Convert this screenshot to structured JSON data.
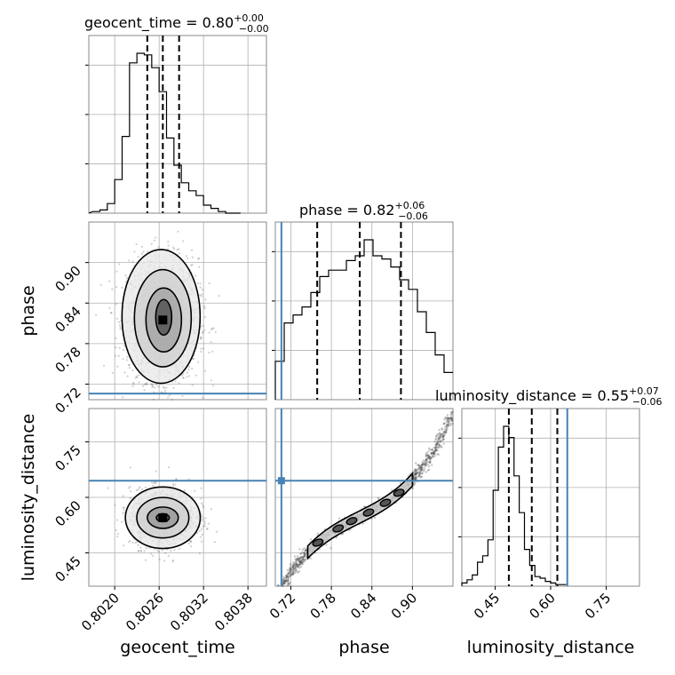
{
  "chart_data": {
    "type": "corner",
    "parameters": [
      {
        "name": "geocent_time",
        "xlabel": "geocent_time",
        "ylabel": "",
        "title_prefix": "geocent_time = ",
        "median": "0.80",
        "plus": "+0.00",
        "minus": "−0.00",
        "quantiles": [
          0.80244,
          0.80265,
          0.80287
        ],
        "range": [
          0.80165,
          0.80405
        ],
        "ticks": [
          0.802,
          0.8026,
          0.8032,
          0.8038
        ],
        "tick_labels": [
          "0.8020",
          "0.8026",
          "0.8032",
          "0.8038"
        ],
        "hist_edges_start": 0.8017,
        "hist_bin_width": 0.0001,
        "hist_counts": [
          1,
          2,
          6,
          21,
          48,
          94,
          100,
          99,
          91,
          76,
          47,
          30,
          19,
          14,
          11,
          5,
          3,
          1,
          0,
          0
        ],
        "truth": null
      },
      {
        "name": "phase",
        "xlabel": "phase",
        "ylabel": "phase",
        "title_prefix": "phase = ",
        "median": "0.82",
        "plus": "+0.06",
        "minus": "−0.06",
        "quantiles": [
          0.759,
          0.822,
          0.883
        ],
        "range": [
          0.697,
          0.96
        ],
        "ticks": [
          0.72,
          0.78,
          0.84,
          0.9
        ],
        "tick_labels": [
          "0.72",
          "0.78",
          "0.84",
          "0.90"
        ],
        "hist_edges_start": 0.697,
        "hist_bin_width": 0.01315,
        "hist_counts": [
          24,
          48,
          53,
          58,
          67,
          77,
          81,
          81,
          87,
          90,
          100,
          90,
          88,
          83,
          75,
          69,
          55,
          42,
          28,
          17
        ],
        "truth": 0.706
      },
      {
        "name": "luminosity_distance",
        "xlabel": "luminosity_distance",
        "ylabel": "luminosity_distance",
        "title_prefix": "luminosity_distance = ",
        "median": "0.55",
        "plus": "+0.07",
        "minus": "−0.06",
        "quantiles": [
          0.487,
          0.549,
          0.618
        ],
        "range": [
          0.36,
          0.84
        ],
        "ticks": [
          0.45,
          0.6,
          0.75
        ],
        "tick_labels": [
          "0.45",
          "0.60",
          "0.75"
        ],
        "hist_edges_start": 0.36,
        "hist_bin_width": 0.0141,
        "hist_counts": [
          2,
          4,
          7,
          15,
          19,
          29,
          60,
          87,
          100,
          93,
          69,
          46,
          23,
          13,
          6,
          5,
          3,
          2,
          1,
          1
        ],
        "truth": 0.645
      }
    ],
    "contours": {
      "phase_vs_geocent_time": {
        "center": [
          0.80265,
          0.815
        ],
        "spread": [
          0.00024,
          0.045
        ],
        "sample_count": 1800
      },
      "luminosity_distance_vs_geocent_time": {
        "center": [
          0.80265,
          0.545
        ],
        "spread": [
          0.00022,
          0.038
        ],
        "sample_count": 1400
      },
      "luminosity_distance_vs_phase": {
        "curve": "s-shaped degeneracy",
        "sample_count": 1500
      }
    },
    "truth_color": "#4682b4",
    "line_color": "#000000",
    "grid": true
  }
}
